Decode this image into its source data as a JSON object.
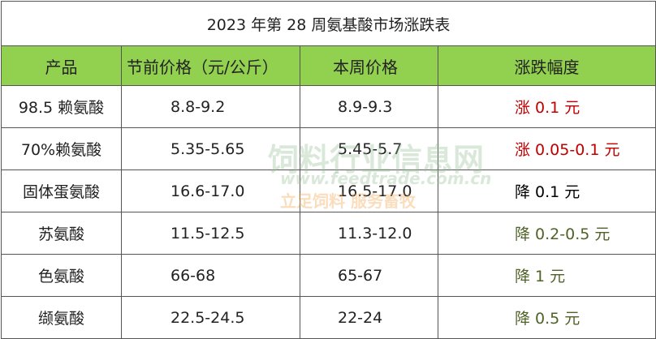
{
  "table": {
    "title": "2023 年第 28 周氨基酸市场涨跌表",
    "header": [
      "产品",
      "节前价格（元/公斤）",
      "本周价格",
      "涨跌幅度"
    ],
    "header_color": "#92d050",
    "rows": [
      [
        "98.5 赖氨酸",
        "8.8-9.2",
        "8.9-9.3",
        "涨 0.1 元"
      ],
      [
        "70%赖氨酸",
        "5.35-5.65",
        "5.45-5.7",
        "涨 0.05-0.1 元"
      ],
      [
        "固体蛋氨酸",
        "16.6-17.0",
        "16.5-17.0",
        "降 0.1 元"
      ],
      [
        "苏氨酸",
        "11.5-12.5",
        "11.3-12.0",
        "降 0.2-0.5 元"
      ],
      [
        "色氨酸",
        "66-68",
        "65-67",
        "降 1 元"
      ],
      [
        "缬氨酸",
        "22.5-24.5",
        "22-24",
        "降 0.5 元"
      ]
    ],
    "change_colors": [
      "#c00000",
      "#c00000",
      "#000000",
      "#4f6228",
      "#4f6228",
      "#4f6228"
    ],
    "watermark": [
      "饲料行业信息网",
      "www.feedtrade.com.cn",
      "立足饲料 服务畜牧"
    ]
  }
}
